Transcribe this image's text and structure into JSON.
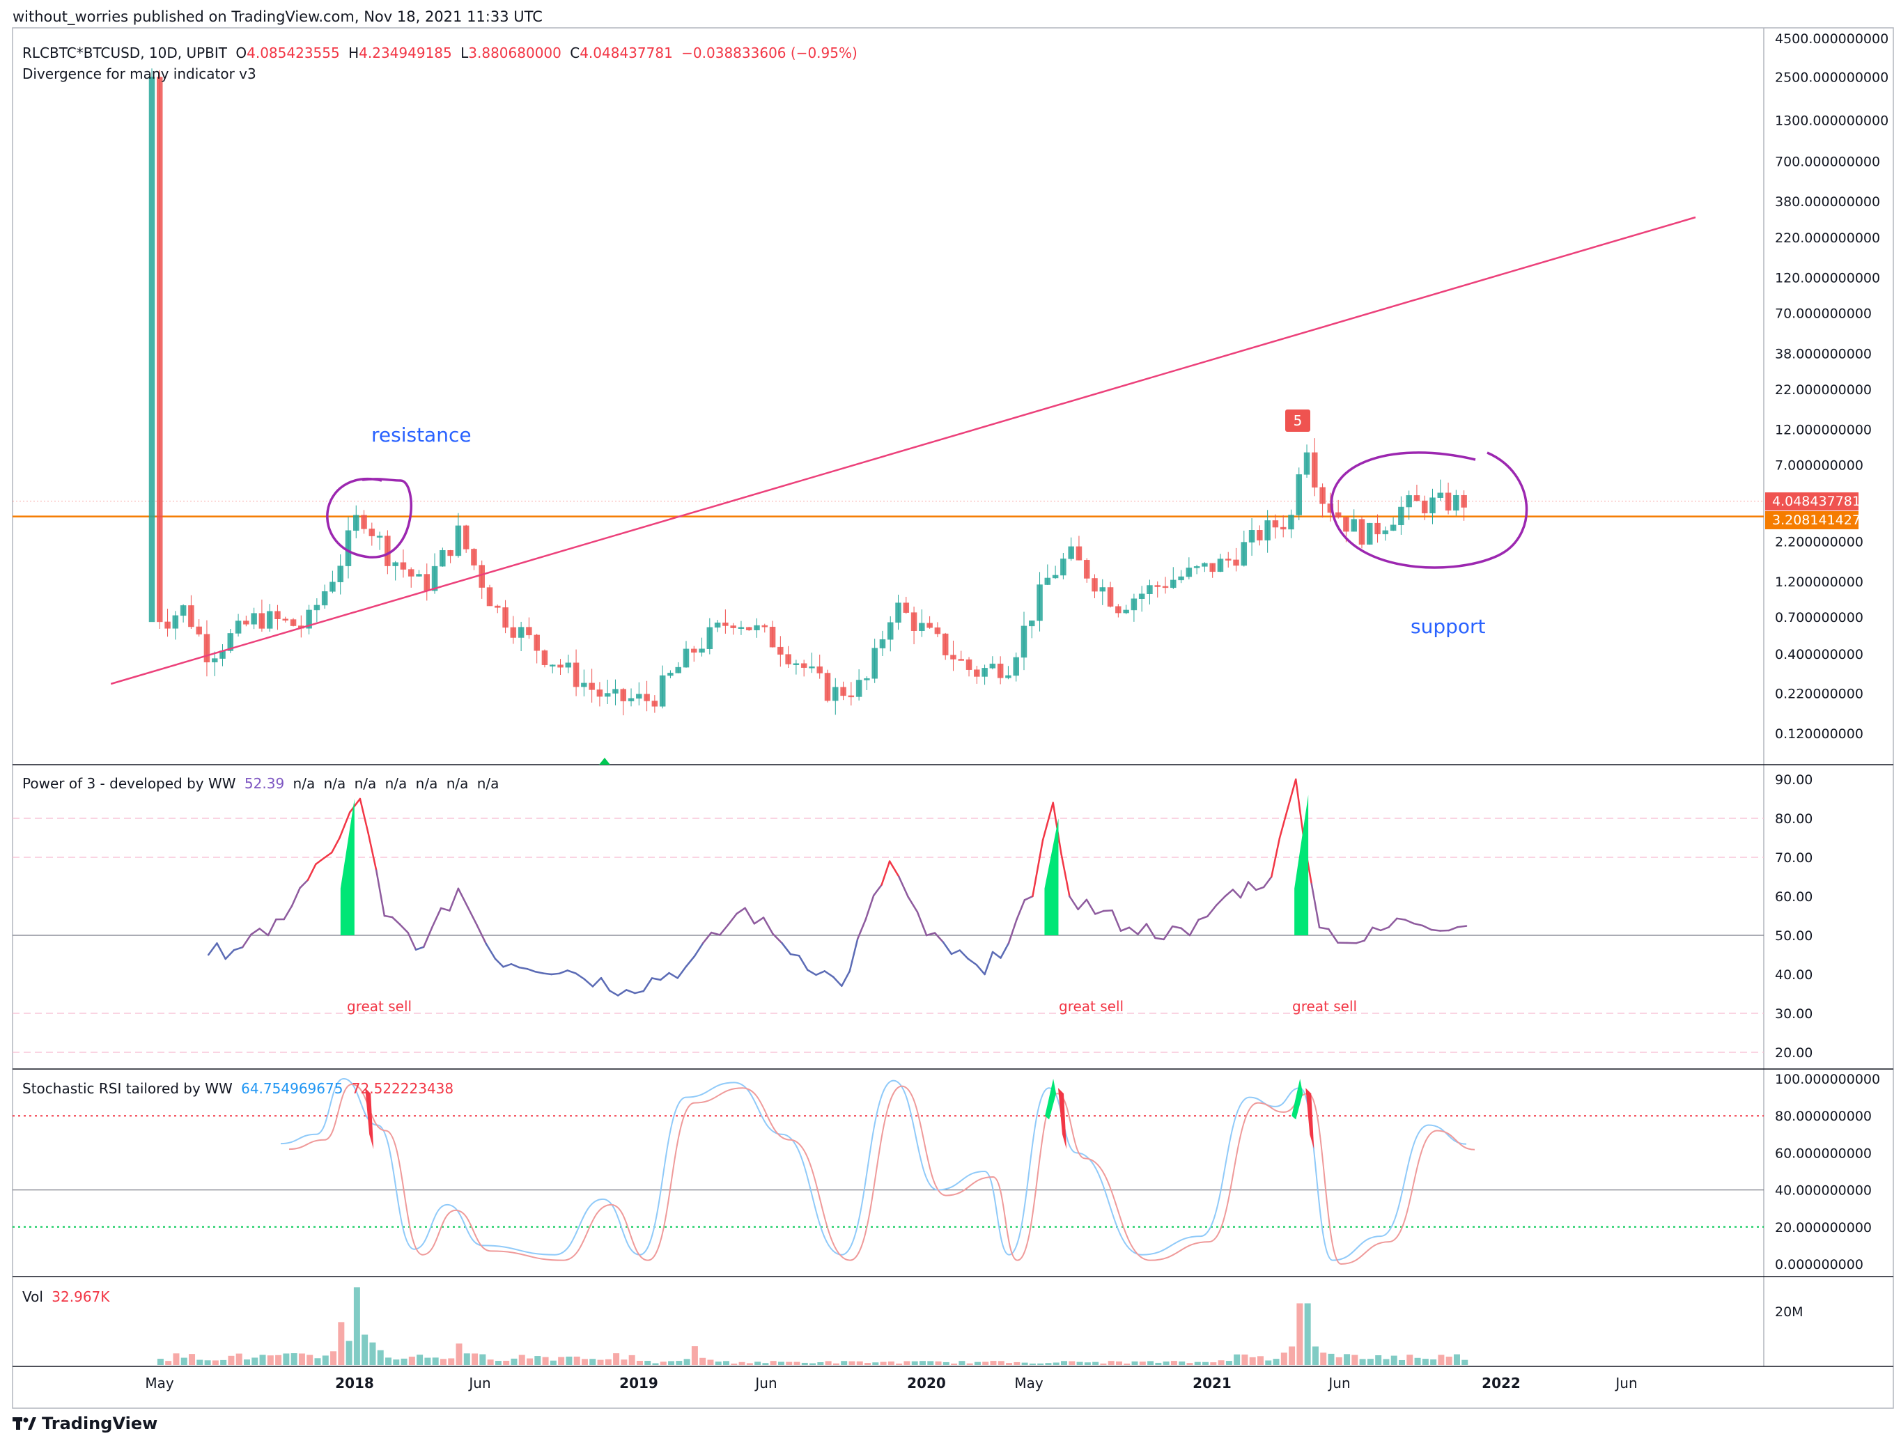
{
  "header": {
    "published": "without_worries published on TradingView.com, Nov 18, 2021 11:33 UTC"
  },
  "main_pane": {
    "symbol": "RLCBTC*BTCUSD, 10D, UPBIT",
    "o_label": "O",
    "o_value": "4.085423555",
    "h_label": "H",
    "h_value": "4.234949185",
    "l_label": "L",
    "l_value": "3.880680000",
    "c_label": "C",
    "c_value": "4.048437781",
    "change": "−0.038833606 (−0.95%)",
    "indicator": "Divergence for many indicator v3",
    "annotation_resistance": "resistance",
    "annotation_support": "support",
    "signal_badge": "5",
    "price_label": "4.048437781",
    "level_label": "3.208141427",
    "y_ticks": [
      "4500.000000000",
      "2500.000000000",
      "1300.000000000",
      "700.000000000",
      "380.000000000",
      "220.000000000",
      "120.000000000",
      "70.000000000",
      "38.000000000",
      "22.000000000",
      "12.000000000",
      "7.000000000",
      "2.200000000",
      "1.200000000",
      "0.700000000",
      "0.400000000",
      "0.220000000",
      "0.120000000"
    ]
  },
  "power_pane": {
    "title": "Power of 3 - developed by WW",
    "value": "52.39",
    "na_values": [
      "n/a",
      "n/a",
      "n/a",
      "n/a",
      "n/a",
      "n/a",
      "n/a"
    ],
    "y_ticks": [
      "90.00",
      "80.00",
      "70.00",
      "60.00",
      "50.00",
      "40.00",
      "30.00",
      "20.00"
    ],
    "annotations": [
      "great sell",
      "great sell",
      "great sell"
    ]
  },
  "stoch_pane": {
    "title": "Stochastic RSI tailored by WW",
    "k_value": "64.754969675",
    "d_value": "72.522223438",
    "y_ticks": [
      "100.000000000",
      "80.000000000",
      "60.000000000",
      "40.000000000",
      "20.000000000",
      "0.000000000"
    ]
  },
  "vol_pane": {
    "title": "Vol",
    "value": "32.967K",
    "y_ticks": [
      "20M"
    ]
  },
  "x_axis": {
    "labels": [
      "May",
      "2018",
      "Jun",
      "2019",
      "Jun",
      "2020",
      "May",
      "2021",
      "Jun",
      "2022",
      "Jun"
    ]
  },
  "footer": {
    "brand": "TradingView"
  },
  "colors": {
    "up": "#26a69a",
    "down": "#ef5350",
    "trendline": "#ec407a",
    "horizontal_level": "#f57c00",
    "circle": "#9c27b0",
    "annotation_blue": "#2962ff",
    "power_line": "#5b6bb5",
    "power_hot": "#f23645",
    "stoch_k": "#90caf9",
    "stoch_d": "#ef9a9a"
  },
  "chart_data": [
    {
      "type": "candlestick",
      "title": "RLCBTC*BTCUSD, 10D, UPBIT",
      "y_scale": "log",
      "ylim": [
        0.1,
        4500
      ],
      "x_range": [
        "2017-04",
        "2022-07"
      ],
      "close_series_approx": [
        {
          "x": "2017-04-20",
          "y": 2500
        },
        {
          "x": "2017-05-01",
          "y": 0.65
        },
        {
          "x": "2017-06-01",
          "y": 0.8
        },
        {
          "x": "2017-07-01",
          "y": 0.4
        },
        {
          "x": "2017-09-01",
          "y": 0.7
        },
        {
          "x": "2017-11-01",
          "y": 0.6
        },
        {
          "x": "2017-12-15",
          "y": 1.6
        },
        {
          "x": "2018-01-10",
          "y": 3.5
        },
        {
          "x": "2018-02-15",
          "y": 1.8
        },
        {
          "x": "2018-04-01",
          "y": 1.1
        },
        {
          "x": "2018-05-15",
          "y": 2.5
        },
        {
          "x": "2018-07-01",
          "y": 0.8
        },
        {
          "x": "2018-09-01",
          "y": 0.4
        },
        {
          "x": "2018-11-20",
          "y": 0.2
        },
        {
          "x": "2019-01-15",
          "y": 0.2
        },
        {
          "x": "2019-03-15",
          "y": 0.45
        },
        {
          "x": "2019-05-01",
          "y": 0.7
        },
        {
          "x": "2019-07-01",
          "y": 0.45
        },
        {
          "x": "2019-09-01",
          "y": 0.22
        },
        {
          "x": "2019-10-15",
          "y": 0.25
        },
        {
          "x": "2019-11-20",
          "y": 0.85
        },
        {
          "x": "2020-01-01",
          "y": 0.55
        },
        {
          "x": "2020-03-01",
          "y": 0.3
        },
        {
          "x": "2020-04-15",
          "y": 0.35
        },
        {
          "x": "2020-06-01",
          "y": 1.2
        },
        {
          "x": "2020-07-01",
          "y": 1.8
        },
        {
          "x": "2020-09-01",
          "y": 0.85
        },
        {
          "x": "2020-11-01",
          "y": 1.2
        },
        {
          "x": "2021-01-15",
          "y": 1.6
        },
        {
          "x": "2021-03-01",
          "y": 2.5
        },
        {
          "x": "2021-04-10",
          "y": 3.2
        },
        {
          "x": "2021-04-25",
          "y": 12
        },
        {
          "x": "2021-05-15",
          "y": 4.5
        },
        {
          "x": "2021-06-15",
          "y": 3.0
        },
        {
          "x": "2021-07-15",
          "y": 2.4
        },
        {
          "x": "2021-09-01",
          "y": 3.8
        },
        {
          "x": "2021-11-18",
          "y": 4.048
        }
      ],
      "last_close": 4.048437781,
      "horizontal_level": 3.208141427,
      "trendline": [
        {
          "x": "2017-07-01",
          "y": 0.3
        },
        {
          "x": "2022-01-01",
          "y": 260
        }
      ]
    },
    {
      "type": "line",
      "title": "Power of 3 - developed by WW",
      "ylim": [
        15,
        95
      ],
      "reference_lines": [
        80,
        70,
        50,
        30,
        20
      ],
      "series": [
        {
          "values_approx": [
            {
              "x": "2017-07-01",
              "y": 45
            },
            {
              "x": "2017-09-15",
              "y": 50
            },
            {
              "x": "2017-12-15",
              "y": 75
            },
            {
              "x": "2018-01-10",
              "y": 85
            },
            {
              "x": "2018-02-10",
              "y": 55
            },
            {
              "x": "2018-04-01",
              "y": 47
            },
            {
              "x": "2018-05-15",
              "y": 62
            },
            {
              "x": "2018-07-01",
              "y": 44
            },
            {
              "x": "2018-10-01",
              "y": 41
            },
            {
              "x": "2018-12-15",
              "y": 36
            },
            {
              "x": "2019-03-01",
              "y": 42
            },
            {
              "x": "2019-05-15",
              "y": 57
            },
            {
              "x": "2019-07-01",
              "y": 48
            },
            {
              "x": "2019-09-15",
              "y": 37
            },
            {
              "x": "2019-11-15",
              "y": 69
            },
            {
              "x": "2020-01-01",
              "y": 50
            },
            {
              "x": "2020-03-15",
              "y": 40
            },
            {
              "x": "2020-05-15",
              "y": 60
            },
            {
              "x": "2020-06-10",
              "y": 84
            },
            {
              "x": "2020-07-01",
              "y": 60
            },
            {
              "x": "2020-09-15",
              "y": 52
            },
            {
              "x": "2020-12-01",
              "y": 50
            },
            {
              "x": "2021-01-15",
              "y": 60
            },
            {
              "x": "2021-03-15",
              "y": 65
            },
            {
              "x": "2021-04-15",
              "y": 90
            },
            {
              "x": "2021-05-15",
              "y": 52
            },
            {
              "x": "2021-07-01",
              "y": 48
            },
            {
              "x": "2021-09-01",
              "y": 54
            },
            {
              "x": "2021-11-18",
              "y": 52.39
            }
          ]
        }
      ],
      "last_value": 52.39
    },
    {
      "type": "line",
      "title": "Stochastic RSI tailored by WW",
      "ylim": [
        0,
        100
      ],
      "reference_lines": [
        80,
        40,
        20
      ],
      "series": [
        {
          "values_approx": [
            {
              "x": "2017-10-01",
              "y": 65
            },
            {
              "x": "2017-11-15",
              "y": 70
            },
            {
              "x": "2017-12-20",
              "y": 100
            },
            {
              "x": "2018-02-01",
              "y": 75
            },
            {
              "x": "2018-03-20",
              "y": 8
            },
            {
              "x": "2018-05-01",
              "y": 32
            },
            {
              "x": "2018-06-15",
              "y": 10
            },
            {
              "x": "2018-09-15",
              "y": 5
            },
            {
              "x": "2018-11-15",
              "y": 35
            },
            {
              "x": "2019-01-01",
              "y": 5
            },
            {
              "x": "2019-03-01",
              "y": 90
            },
            {
              "x": "2019-05-01",
              "y": 98
            },
            {
              "x": "2019-07-01",
              "y": 70
            },
            {
              "x": "2019-09-15",
              "y": 5
            },
            {
              "x": "2019-11-20",
              "y": 99
            },
            {
              "x": "2020-01-15",
              "y": 40
            },
            {
              "x": "2020-03-15",
              "y": 50
            },
            {
              "x": "2020-04-15",
              "y": 5
            },
            {
              "x": "2020-06-05",
              "y": 95
            },
            {
              "x": "2020-07-10",
              "y": 60
            },
            {
              "x": "2020-10-01",
              "y": 5
            },
            {
              "x": "2020-12-15",
              "y": 15
            },
            {
              "x": "2021-02-15",
              "y": 90
            },
            {
              "x": "2021-03-20",
              "y": 85
            },
            {
              "x": "2021-04-20",
              "y": 95
            },
            {
              "x": "2021-06-01",
              "y": 2
            },
            {
              "x": "2021-08-01",
              "y": 15
            },
            {
              "x": "2021-10-01",
              "y": 75
            },
            {
              "x": "2021-11-18",
              "y": 64.754969675
            }
          ]
        },
        {
          "values_approx": [
            {
              "x": "2017-12-25",
              "y": 98
            },
            {
              "x": "2018-03-25",
              "y": 12
            },
            {
              "x": "2019-05-10",
              "y": 96
            },
            {
              "x": "2019-11-25",
              "y": 97
            },
            {
              "x": "2020-06-10",
              "y": 92
            },
            {
              "x": "2021-04-25",
              "y": 90
            },
            {
              "x": "2021-06-15",
              "y": 3
            },
            {
              "x": "2021-11-18",
              "y": 72.522223438
            }
          ]
        }
      ]
    },
    {
      "type": "bar",
      "title": "Vol",
      "ylim": [
        0,
        30000000
      ],
      "last_value": "32.967K",
      "peaks_approx": [
        {
          "x": "2017-12-20",
          "y": 16000000
        },
        {
          "x": "2018-01-10",
          "y": 29000000
        },
        {
          "x": "2018-05-20",
          "y": 8000000
        },
        {
          "x": "2019-03-15",
          "y": 7000000
        },
        {
          "x": "2021-04-25",
          "y": 23000000
        }
      ]
    }
  ]
}
